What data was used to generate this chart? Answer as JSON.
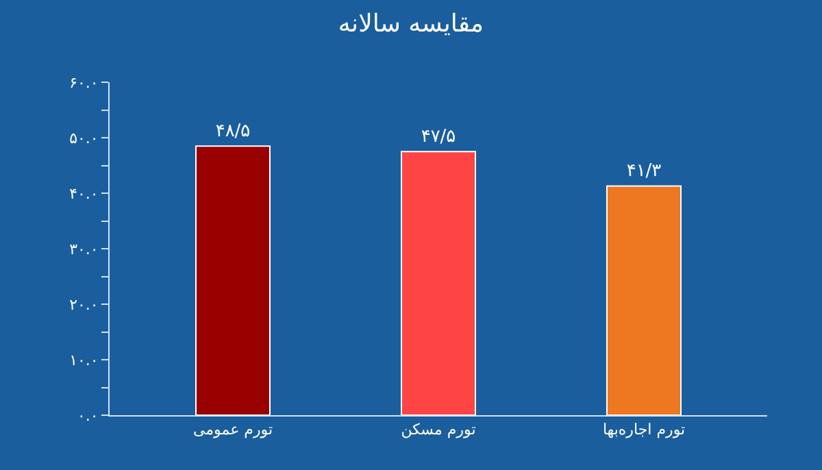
{
  "chart_data": {
    "type": "bar",
    "title": "مقایسه سالانه",
    "categories": [
      "تورم عمومی",
      "تورم مسکن",
      "تورم اجاره‌بها"
    ],
    "values": [
      48.5,
      47.5,
      41.3
    ],
    "colors": [
      "#990000",
      "#ff4444",
      "#ee7722"
    ],
    "value_labels": [
      "۴۸/۵",
      "۴۷/۵",
      "۴۱/۳"
    ],
    "ylim": [
      0,
      60
    ],
    "yticks": [
      {
        "value": 0,
        "label": "۰.۰"
      },
      {
        "value": 5,
        "label": null
      },
      {
        "value": 10,
        "label": "۱۰.۰"
      },
      {
        "value": 15,
        "label": null
      },
      {
        "value": 20,
        "label": "۲۰.۰"
      },
      {
        "value": 25,
        "label": null
      },
      {
        "value": 30,
        "label": "۳۰.۰"
      },
      {
        "value": 35,
        "label": null
      },
      {
        "value": 40,
        "label": "۴۰.۰"
      },
      {
        "value": 45,
        "label": null
      },
      {
        "value": 50,
        "label": "۵۰.۰"
      },
      {
        "value": 55,
        "label": null
      },
      {
        "value": 60,
        "label": "۶۰.۰"
      }
    ],
    "grid": false
  }
}
